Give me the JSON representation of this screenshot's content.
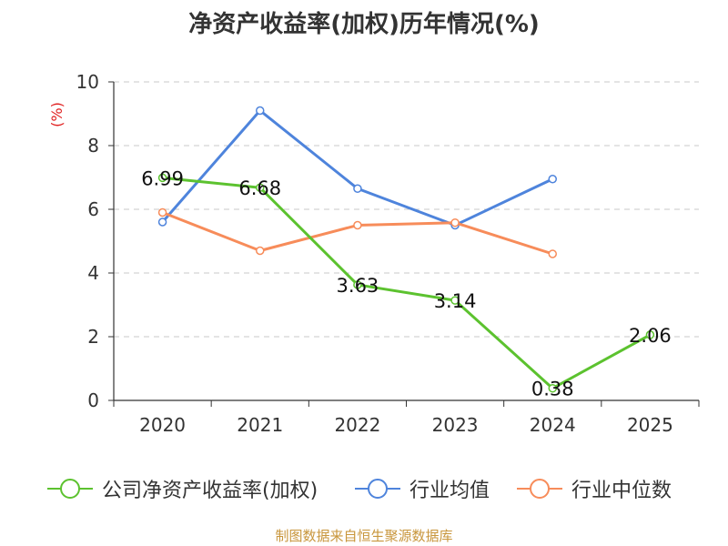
{
  "chart_data": {
    "type": "line",
    "title": "净资产收益率(加权)历年情况(%)",
    "ylabel": "(%)",
    "xlabel": "",
    "categories": [
      "2020",
      "2021",
      "2022",
      "2023",
      "2024",
      "2025"
    ],
    "ylim": [
      0,
      10
    ],
    "yticks": [
      0,
      2,
      4,
      6,
      8,
      10
    ],
    "grid": "horizontal-dashed",
    "legend_position": "bottom",
    "series": [
      {
        "name": "公司净资产收益率(加权)",
        "color": "#5cc22f",
        "values": [
          6.99,
          6.68,
          3.63,
          3.14,
          0.38,
          2.06
        ],
        "labels": [
          "6.99",
          "6.68",
          "3.63",
          "3.14",
          "0.38",
          "2.06"
        ]
      },
      {
        "name": "行业均值",
        "color": "#4e84dc",
        "values": [
          5.6,
          9.1,
          6.65,
          5.5,
          6.95,
          null
        ]
      },
      {
        "name": "行业中位数",
        "color": "#f78c5a",
        "values": [
          5.9,
          4.7,
          5.5,
          5.58,
          4.6,
          null
        ]
      }
    ],
    "source": "制图数据来自恒生聚源数据库"
  }
}
